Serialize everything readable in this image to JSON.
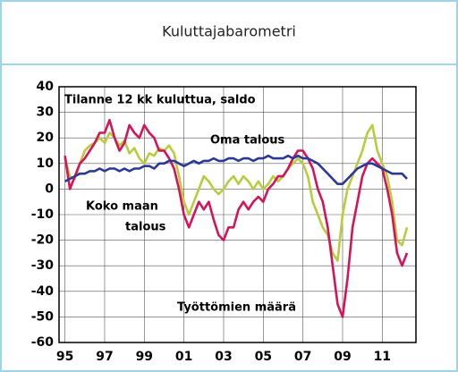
{
  "chart_data": {
    "type": "line",
    "title": "Kuluttajabarometri",
    "annotations": [
      "Tilanne 12 kk kuluttua, saldo",
      "Oma talous",
      "Koko maan",
      "talous",
      "Työttömien määrä"
    ],
    "x": [
      1995,
      1995.25,
      1995.5,
      1995.75,
      1996,
      1996.25,
      1996.5,
      1996.75,
      1997,
      1997.25,
      1997.5,
      1997.75,
      1998,
      1998.25,
      1998.5,
      1998.75,
      1999,
      1999.25,
      1999.5,
      1999.75,
      2000,
      2000.25,
      2000.5,
      2000.75,
      2001,
      2001.25,
      2001.5,
      2001.75,
      2002,
      2002.25,
      2002.5,
      2002.75,
      2003,
      2003.25,
      2003.5,
      2003.75,
      2004,
      2004.25,
      2004.5,
      2004.75,
      2005,
      2005.25,
      2005.5,
      2005.75,
      2006,
      2006.25,
      2006.5,
      2006.75,
      2007,
      2007.25,
      2007.5,
      2007.75,
      2008,
      2008.25,
      2008.5,
      2008.75,
      2009,
      2009.25,
      2009.5,
      2009.75,
      2010,
      2010.25,
      2010.5,
      2010.75,
      2011,
      2011.25,
      2011.5,
      2011.75,
      2012,
      2012.25
    ],
    "series": [
      {
        "name": "Koko maan talous",
        "color": "#b8cc3c",
        "values": [
          12,
          5,
          4,
          10,
          15,
          17,
          18,
          20,
          18,
          22,
          20,
          17,
          19,
          14,
          16,
          12,
          10,
          14,
          13,
          16,
          15,
          17,
          14,
          5,
          -5,
          -10,
          -5,
          0,
          5,
          3,
          0,
          -2,
          0,
          3,
          5,
          2,
          5,
          3,
          0,
          3,
          0,
          2,
          5,
          3,
          5,
          8,
          10,
          12,
          10,
          5,
          -5,
          -10,
          -15,
          -18,
          -25,
          -28,
          -10,
          0,
          5,
          10,
          15,
          22,
          25,
          15,
          10,
          5,
          -5,
          -20,
          -22,
          -15
        ]
      },
      {
        "name": "Työttömien määrä",
        "color": "#d4145a",
        "values": [
          13,
          0,
          5,
          10,
          12,
          15,
          18,
          22,
          22,
          27,
          20,
          15,
          18,
          25,
          22,
          20,
          25,
          22,
          20,
          15,
          15,
          12,
          8,
          0,
          -10,
          -15,
          -10,
          -5,
          -8,
          -5,
          -12,
          -18,
          -20,
          -15,
          -15,
          -8,
          -5,
          -8,
          -5,
          -3,
          -5,
          0,
          2,
          5,
          5,
          8,
          12,
          15,
          15,
          12,
          8,
          0,
          -5,
          -15,
          -30,
          -45,
          -50,
          -35,
          -15,
          -5,
          5,
          10,
          12,
          10,
          8,
          0,
          -10,
          -25,
          -30,
          -25
        ]
      },
      {
        "name": "Oma talous",
        "color": "#2b3896",
        "values": [
          3,
          4,
          5,
          6,
          6,
          7,
          7,
          8,
          7,
          8,
          8,
          7,
          8,
          7,
          8,
          8,
          9,
          9,
          8,
          10,
          10,
          11,
          11,
          10,
          9,
          10,
          11,
          10,
          11,
          11,
          12,
          11,
          11,
          12,
          12,
          11,
          12,
          12,
          11,
          12,
          12,
          13,
          12,
          12,
          12,
          13,
          12,
          13,
          12,
          12,
          11,
          10,
          8,
          6,
          4,
          2,
          2,
          4,
          6,
          8,
          9,
          10,
          10,
          9,
          8,
          7,
          6,
          6,
          6,
          4
        ]
      }
    ],
    "xlim": [
      1994.7,
      2012.7
    ],
    "xticks": [
      {
        "value": 1995,
        "label": "95"
      },
      {
        "value": 1997,
        "label": "97"
      },
      {
        "value": 1999,
        "label": "99"
      },
      {
        "value": 2001,
        "label": "01"
      },
      {
        "value": 2003,
        "label": "03"
      },
      {
        "value": 2005,
        "label": "05"
      },
      {
        "value": 2007,
        "label": "07"
      },
      {
        "value": 2009,
        "label": "09"
      },
      {
        "value": 2011,
        "label": "11"
      }
    ],
    "ylim": [
      -60,
      40
    ],
    "yticks": [
      -60,
      -50,
      -40,
      -30,
      -20,
      -10,
      0,
      10,
      20,
      30,
      40
    ],
    "grid": true
  }
}
